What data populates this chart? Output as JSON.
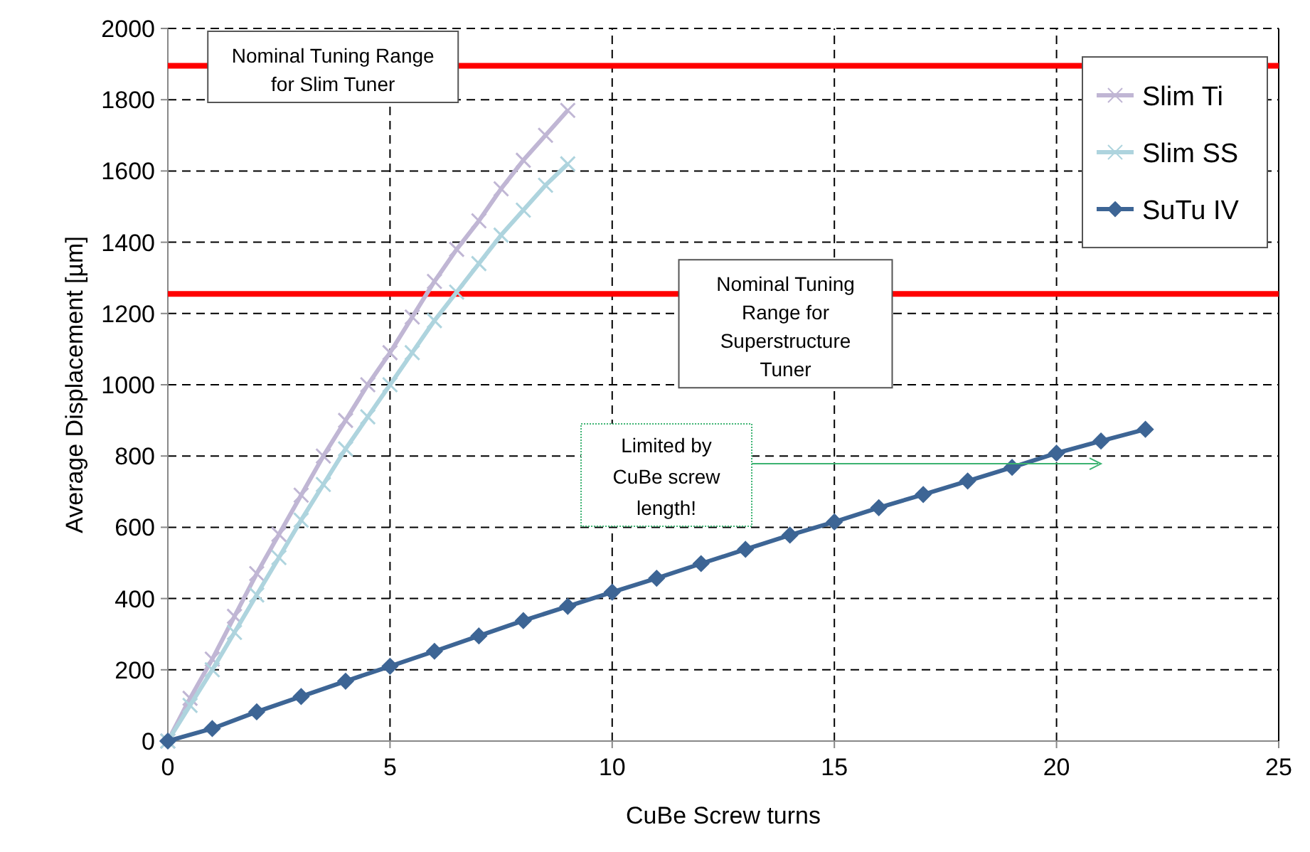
{
  "chart_data": {
    "type": "line",
    "xlabel": "CuBe Screw turns",
    "ylabel": "Average Displacement [µm]",
    "xlim": [
      0,
      25
    ],
    "xticks": [
      0,
      5,
      10,
      15,
      20,
      25
    ],
    "ylim": [
      0,
      2000
    ],
    "yticks": [
      0,
      200,
      400,
      600,
      800,
      1000,
      1200,
      1400,
      1600,
      1800,
      2000
    ],
    "grid": true,
    "legend": "top right",
    "line_style": "solid",
    "series": [
      {
        "name": "Slim Ti",
        "color": "#c0b6d4",
        "marker": "cross",
        "x": [
          0,
          0.5,
          1,
          1.5,
          2,
          2.5,
          3,
          3.5,
          4,
          4.5,
          5,
          5.5,
          6,
          6.5,
          7,
          7.5,
          8,
          8.5,
          9
        ],
        "values": [
          0,
          120,
          230,
          350,
          470,
          580,
          690,
          800,
          900,
          1000,
          1090,
          1190,
          1290,
          1380,
          1460,
          1550,
          1630,
          1700,
          1770
        ]
      },
      {
        "name": "Slim SS",
        "color": "#aed4de",
        "marker": "cross",
        "x": [
          0,
          0.5,
          1,
          1.5,
          2,
          2.5,
          3,
          3.5,
          4,
          4.5,
          5,
          5.5,
          6,
          6.5,
          7,
          7.5,
          8,
          8.5,
          9
        ],
        "values": [
          0,
          100,
          200,
          305,
          410,
          515,
          620,
          720,
          820,
          910,
          1000,
          1090,
          1180,
          1260,
          1340,
          1420,
          1490,
          1560,
          1620
        ]
      },
      {
        "name": "SuTu IV",
        "color": "#3d6595",
        "marker": "diamond",
        "x": [
          0,
          1,
          2,
          3,
          4,
          5,
          6,
          7,
          8,
          9,
          10,
          11,
          12,
          13,
          14,
          15,
          16,
          17,
          18,
          19,
          20,
          21,
          22
        ],
        "values": [
          0,
          35,
          82,
          125,
          168,
          210,
          252,
          295,
          338,
          378,
          418,
          457,
          498,
          538,
          578,
          615,
          655,
          692,
          730,
          768,
          808,
          842,
          875
        ]
      }
    ],
    "ref_lines": [
      {
        "axis": "y",
        "value": 1895,
        "label": "Nominal Tuning Range for Slim Tuner",
        "color": "#ff0000"
      },
      {
        "axis": "y",
        "value": 1255,
        "label": "Nominal Tuning Range for Superstructure Tuner",
        "color": "#ff0000"
      }
    ],
    "annotations": [
      "Limited by CuBe screw length!"
    ]
  }
}
